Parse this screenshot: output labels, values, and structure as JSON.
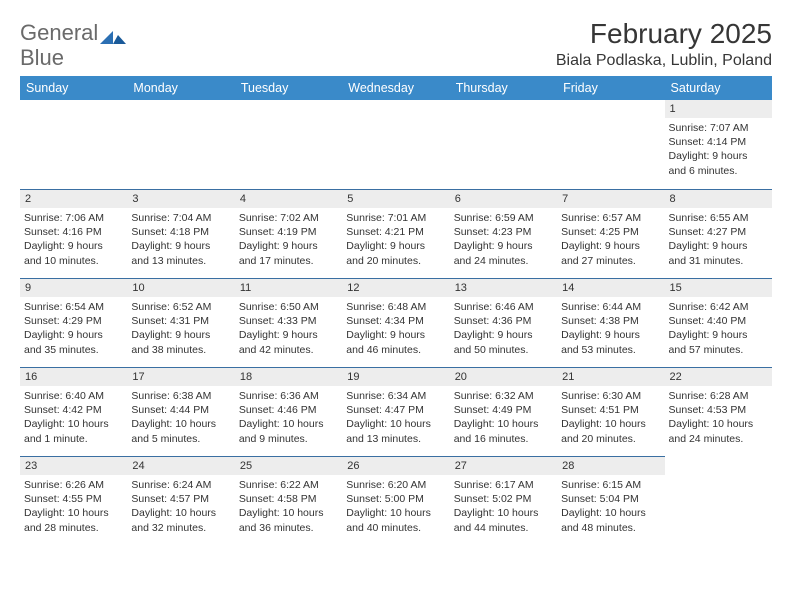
{
  "brand": {
    "word1": "General",
    "word2": "Blue"
  },
  "title": "February 2025",
  "location": "Biala Podlaska, Lublin, Poland",
  "colors": {
    "header_bg": "#3a8ac9",
    "header_text": "#ffffff",
    "daynum_bg": "#ededed",
    "row_divider": "#3a6fa2",
    "page_bg": "#ffffff",
    "text": "#333333",
    "title_text": "#363636",
    "logo_gray": "#6a6a6a",
    "logo_blue": "#2b6fb3"
  },
  "weekdays": [
    "Sunday",
    "Monday",
    "Tuesday",
    "Wednesday",
    "Thursday",
    "Friday",
    "Saturday"
  ],
  "weeks": [
    [
      null,
      null,
      null,
      null,
      null,
      null,
      {
        "n": "1",
        "sunrise": "7:07 AM",
        "sunset": "4:14 PM",
        "daylight": "9 hours and 6 minutes."
      }
    ],
    [
      {
        "n": "2",
        "sunrise": "7:06 AM",
        "sunset": "4:16 PM",
        "daylight": "9 hours and 10 minutes."
      },
      {
        "n": "3",
        "sunrise": "7:04 AM",
        "sunset": "4:18 PM",
        "daylight": "9 hours and 13 minutes."
      },
      {
        "n": "4",
        "sunrise": "7:02 AM",
        "sunset": "4:19 PM",
        "daylight": "9 hours and 17 minutes."
      },
      {
        "n": "5",
        "sunrise": "7:01 AM",
        "sunset": "4:21 PM",
        "daylight": "9 hours and 20 minutes."
      },
      {
        "n": "6",
        "sunrise": "6:59 AM",
        "sunset": "4:23 PM",
        "daylight": "9 hours and 24 minutes."
      },
      {
        "n": "7",
        "sunrise": "6:57 AM",
        "sunset": "4:25 PM",
        "daylight": "9 hours and 27 minutes."
      },
      {
        "n": "8",
        "sunrise": "6:55 AM",
        "sunset": "4:27 PM",
        "daylight": "9 hours and 31 minutes."
      }
    ],
    [
      {
        "n": "9",
        "sunrise": "6:54 AM",
        "sunset": "4:29 PM",
        "daylight": "9 hours and 35 minutes."
      },
      {
        "n": "10",
        "sunrise": "6:52 AM",
        "sunset": "4:31 PM",
        "daylight": "9 hours and 38 minutes."
      },
      {
        "n": "11",
        "sunrise": "6:50 AM",
        "sunset": "4:33 PM",
        "daylight": "9 hours and 42 minutes."
      },
      {
        "n": "12",
        "sunrise": "6:48 AM",
        "sunset": "4:34 PM",
        "daylight": "9 hours and 46 minutes."
      },
      {
        "n": "13",
        "sunrise": "6:46 AM",
        "sunset": "4:36 PM",
        "daylight": "9 hours and 50 minutes."
      },
      {
        "n": "14",
        "sunrise": "6:44 AM",
        "sunset": "4:38 PM",
        "daylight": "9 hours and 53 minutes."
      },
      {
        "n": "15",
        "sunrise": "6:42 AM",
        "sunset": "4:40 PM",
        "daylight": "9 hours and 57 minutes."
      }
    ],
    [
      {
        "n": "16",
        "sunrise": "6:40 AM",
        "sunset": "4:42 PM",
        "daylight": "10 hours and 1 minute."
      },
      {
        "n": "17",
        "sunrise": "6:38 AM",
        "sunset": "4:44 PM",
        "daylight": "10 hours and 5 minutes."
      },
      {
        "n": "18",
        "sunrise": "6:36 AM",
        "sunset": "4:46 PM",
        "daylight": "10 hours and 9 minutes."
      },
      {
        "n": "19",
        "sunrise": "6:34 AM",
        "sunset": "4:47 PM",
        "daylight": "10 hours and 13 minutes."
      },
      {
        "n": "20",
        "sunrise": "6:32 AM",
        "sunset": "4:49 PM",
        "daylight": "10 hours and 16 minutes."
      },
      {
        "n": "21",
        "sunrise": "6:30 AM",
        "sunset": "4:51 PM",
        "daylight": "10 hours and 20 minutes."
      },
      {
        "n": "22",
        "sunrise": "6:28 AM",
        "sunset": "4:53 PM",
        "daylight": "10 hours and 24 minutes."
      }
    ],
    [
      {
        "n": "23",
        "sunrise": "6:26 AM",
        "sunset": "4:55 PM",
        "daylight": "10 hours and 28 minutes."
      },
      {
        "n": "24",
        "sunrise": "6:24 AM",
        "sunset": "4:57 PM",
        "daylight": "10 hours and 32 minutes."
      },
      {
        "n": "25",
        "sunrise": "6:22 AM",
        "sunset": "4:58 PM",
        "daylight": "10 hours and 36 minutes."
      },
      {
        "n": "26",
        "sunrise": "6:20 AM",
        "sunset": "5:00 PM",
        "daylight": "10 hours and 40 minutes."
      },
      {
        "n": "27",
        "sunrise": "6:17 AM",
        "sunset": "5:02 PM",
        "daylight": "10 hours and 44 minutes."
      },
      {
        "n": "28",
        "sunrise": "6:15 AM",
        "sunset": "5:04 PM",
        "daylight": "10 hours and 48 minutes."
      },
      null
    ]
  ],
  "labels": {
    "sunrise": "Sunrise:",
    "sunset": "Sunset:",
    "daylight": "Daylight:"
  }
}
